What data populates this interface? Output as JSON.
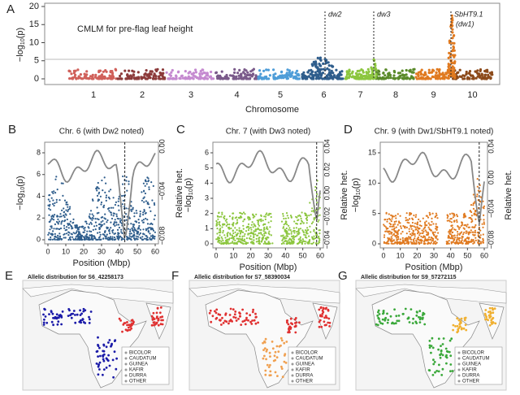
{
  "panel_a": {
    "letter": "A",
    "annotation": "CMLM for pre-flag leaf height",
    "y_label": {
      "prefix": "−log",
      "sub": "10",
      "suffix": "(p)"
    },
    "yticks": [
      0,
      5,
      10,
      15,
      20
    ],
    "chromosomes": [
      "1",
      "2",
      "3",
      "4",
      "5",
      "6",
      "7",
      "8",
      "9",
      "10"
    ],
    "x_label": "Chromosome",
    "loci": [
      {
        "label": "dw2"
      },
      {
        "label": "dw3"
      },
      {
        "label": "SbHT9.1",
        "sublabel": "(dw1)"
      }
    ]
  },
  "position_panels": [
    {
      "letter": "B",
      "title": "Chr. 6 (with Dw2 noted)",
      "y_label": {
        "prefix": "−log",
        "sub": "10",
        "suffix": "(p)"
      },
      "yticks": [
        0,
        2,
        4,
        6,
        8
      ],
      "y2_label": "Relative het.",
      "y2ticks": [
        {
          "value": 0,
          "label": "0.00"
        },
        {
          "value": -0.04,
          "label": "−0.04"
        },
        {
          "value": -0.08,
          "label": "−0.08"
        }
      ],
      "xticks": [
        0,
        10,
        20,
        30,
        40,
        50,
        60
      ],
      "x_label": "Position (Mbp)"
    },
    {
      "letter": "C",
      "title": "Chr. 7 (with Dw3 noted)",
      "y_label": {
        "prefix": "−log",
        "sub": "10",
        "suffix": "(p)"
      },
      "yticks": [
        0,
        1,
        2,
        3,
        4,
        5,
        6
      ],
      "y2_label": "Relative het.",
      "y2ticks": [
        {
          "value": 0.04,
          "label": "0.04"
        },
        {
          "value": 0.02,
          "label": "0.02"
        },
        {
          "value": 0,
          "label": "0.00"
        },
        {
          "value": -0.02,
          "label": "−0.02"
        },
        {
          "value": -0.04,
          "label": "−0.04"
        }
      ],
      "xticks": [
        0,
        10,
        20,
        30,
        40,
        50,
        60
      ],
      "x_label": "Position (Mbp)"
    },
    {
      "letter": "D",
      "title": "Chr. 9 (with Dw1/SbHT9.1 noted)",
      "y_label": {
        "prefix": "−log",
        "sub": "10",
        "suffix": "(p)"
      },
      "yticks": [
        0,
        5,
        10,
        15
      ],
      "y2_label": "Relative het.",
      "y2ticks": [
        {
          "value": 0.04,
          "label": "0.04"
        },
        {
          "value": 0,
          "label": "0.00"
        },
        {
          "value": -0.04,
          "label": "−0.04"
        },
        {
          "value": -0.08,
          "label": "−0.08"
        }
      ],
      "xticks": [
        0,
        10,
        20,
        30,
        40,
        50,
        60
      ],
      "x_label": "Position (Mbp)"
    }
  ],
  "map_panels": [
    {
      "letter": "E",
      "title": "Allelic distribution for S6_42258173",
      "legend": [
        "BICOLOR",
        "CAUDATUM",
        "GUINEA",
        "KAFIR",
        "DURRA",
        "OTHER"
      ]
    },
    {
      "letter": "F",
      "title": "Allelic distribution for S7_58390034",
      "legend": [
        "BICOLOR",
        "CAUDATUM",
        "GUINEA",
        "KAFIR",
        "DURRA",
        "OTHER"
      ]
    },
    {
      "letter": "G",
      "title": "Allelic distribution for S9_57272115",
      "legend": [
        "BICOLOR",
        "CAUDATUM",
        "GUINEA",
        "KAFIR",
        "DURRA",
        "OTHER"
      ]
    }
  ]
}
